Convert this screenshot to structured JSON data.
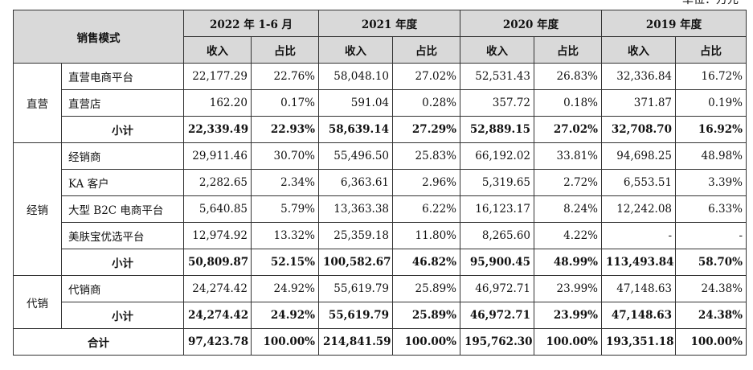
{
  "unit_label": "单位：万元",
  "header": {
    "mode_label": "销售模式",
    "periods": [
      "2022 年 1-6 月",
      "2021 年度",
      "2020 年度",
      "2019 年度"
    ],
    "revenue_label": "收入",
    "share_label": "占比"
  },
  "groups": [
    {
      "name": "直营",
      "rows": [
        {
          "label": "直营电商平台",
          "values": [
            "22,177.29",
            "22.76%",
            "58,048.10",
            "27.02%",
            "52,531.43",
            "26.83%",
            "32,336.84",
            "16.72%"
          ]
        },
        {
          "label": "直营店",
          "values": [
            "162.20",
            "0.17%",
            "591.04",
            "0.28%",
            "357.72",
            "0.18%",
            "371.87",
            "0.19%"
          ]
        }
      ],
      "subtotal": {
        "label": "小计",
        "values": [
          "22,339.49",
          "22.93%",
          "58,639.14",
          "27.29%",
          "52,889.15",
          "27.02%",
          "32,708.70",
          "16.92%"
        ]
      }
    },
    {
      "name": "经销",
      "rows": [
        {
          "label": "经销商",
          "values": [
            "29,911.46",
            "30.70%",
            "55,496.50",
            "25.83%",
            "66,192.02",
            "33.81%",
            "94,698.25",
            "48.98%"
          ]
        },
        {
          "label": "KA 客户",
          "values": [
            "2,282.65",
            "2.34%",
            "6,363.61",
            "2.96%",
            "5,319.65",
            "2.72%",
            "6,553.51",
            "3.39%"
          ]
        },
        {
          "label": "大型 B2C 电商平台",
          "values": [
            "5,640.85",
            "5.79%",
            "13,363.38",
            "6.22%",
            "16,123.17",
            "8.24%",
            "12,242.08",
            "6.33%"
          ]
        },
        {
          "label": "美肤宝优选平台",
          "values": [
            "12,974.92",
            "13.32%",
            "25,359.18",
            "11.80%",
            "8,265.60",
            "4.22%",
            "-",
            "-"
          ]
        }
      ],
      "subtotal": {
        "label": "小计",
        "values": [
          "50,809.87",
          "52.15%",
          "100,582.67",
          "46.82%",
          "95,900.45",
          "48.99%",
          "113,493.84",
          "58.70%"
        ]
      }
    },
    {
      "name": "代销",
      "rows": [
        {
          "label": "代销商",
          "values": [
            "24,274.42",
            "24.92%",
            "55,619.79",
            "25.89%",
            "46,972.71",
            "23.99%",
            "47,148.63",
            "24.38%"
          ]
        }
      ],
      "subtotal": {
        "label": "小计",
        "values": [
          "24,274.42",
          "24.92%",
          "55,619.79",
          "25.89%",
          "46,972.71",
          "23.99%",
          "47,148.63",
          "24.38%"
        ]
      }
    }
  ],
  "total": {
    "label": "合计",
    "values": [
      "97,423.78",
      "100.00%",
      "214,841.59",
      "100.00%",
      "195,762.30",
      "100.00%",
      "193,351.18",
      "100.00%"
    ]
  }
}
